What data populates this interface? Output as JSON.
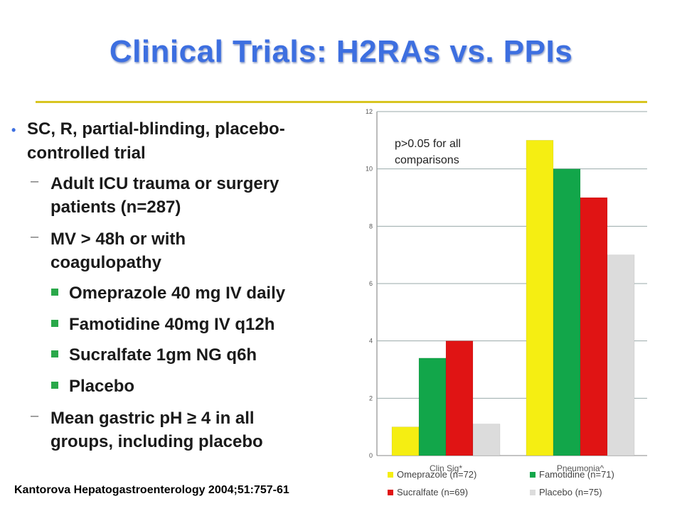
{
  "slide": {
    "title": "Clinical Trials: H2RAs vs. PPIs",
    "bullets": [
      {
        "level": 1,
        "lines": [
          "SC, R, partial-blinding, placebo-",
          "controlled trial"
        ]
      },
      {
        "level": 2,
        "lines": [
          "Adult ICU trauma or surgery",
          "patients (n=287)"
        ]
      },
      {
        "level": 2,
        "lines": [
          "MV > 48h  or with",
          "coagulopathy"
        ]
      },
      {
        "level": 3,
        "lines": [
          "Omeprazole 40 mg IV daily"
        ]
      },
      {
        "level": 3,
        "lines": [
          "Famotidine 40mg IV q12h"
        ]
      },
      {
        "level": 3,
        "lines": [
          "Sucralfate 1gm NG q6h"
        ]
      },
      {
        "level": 3,
        "lines": [
          "Placebo"
        ]
      },
      {
        "level": 2,
        "lines": [
          "Mean gastric pH ≥ 4 in all",
          "groups, including placebo"
        ]
      }
    ],
    "bullet_markers": {
      "level1": "•",
      "level2": "–"
    },
    "citation": "Kantorova Hepatogastroenterology  2004;51:757-61",
    "colors": {
      "title": "#3d6fe0",
      "rule": "#d8c521",
      "level1_marker": "#3d6fe0",
      "level3_marker": "#2aa84a"
    }
  },
  "chart_data": {
    "type": "bar",
    "title": "",
    "annotation": "p>0.05 for all comparisons",
    "categories": [
      "Clin Sig*",
      "Pneumonia^"
    ],
    "series": [
      {
        "name": "Omeprazole  (n=72)",
        "color": "#f5ee12",
        "values": [
          1,
          11
        ]
      },
      {
        "name": "Famotidine (n=71)",
        "color": "#12a64a",
        "values": [
          3.4,
          10
        ]
      },
      {
        "name": "Sucralfate (n=69)",
        "color": "#e01414",
        "values": [
          4,
          9
        ]
      },
      {
        "name": "Placebo (n=75)",
        "color": "#dcdcdc",
        "values": [
          1.1,
          7
        ]
      }
    ],
    "yticks": [
      0,
      2,
      4,
      6,
      8,
      10,
      12
    ],
    "ylim": [
      0,
      12
    ],
    "grid": true,
    "legend_position": "bottom"
  }
}
